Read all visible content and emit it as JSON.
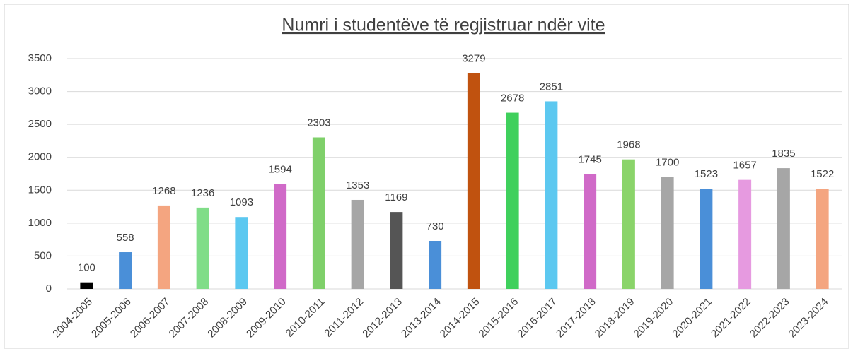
{
  "chart_data": {
    "type": "bar",
    "title": "Numri i studentëve të regjistruar ndër vite",
    "categories": [
      "2004-2005",
      "2005-2006",
      "2006-2007",
      "2007-2008",
      "2008-2009",
      "2009-2010",
      "2010-2011",
      "2011-2012",
      "2012-2013",
      "2013-2014",
      "2014-2015",
      "2015-2016",
      "2016-2017",
      "2017-2018",
      "2018-2019",
      "2019-2020",
      "2020-2021",
      "2021-2022",
      "2022-2023",
      "2023-2024"
    ],
    "values": [
      100,
      558,
      1268,
      1236,
      1093,
      1594,
      2303,
      1353,
      1169,
      730,
      3279,
      2678,
      2851,
      1745,
      1968,
      1700,
      1523,
      1657,
      1835,
      1522
    ],
    "colors": [
      "#000000",
      "#4a8fd8",
      "#f4a580",
      "#80dd88",
      "#5cc8f0",
      "#d06ac8",
      "#7fd06a",
      "#a6a6a6",
      "#555555",
      "#4a8fd8",
      "#c0520f",
      "#3fd05c",
      "#5cc8f0",
      "#d06ac8",
      "#8ad46a",
      "#a6a6a6",
      "#4a8fd8",
      "#e69ae0",
      "#a6a6a6",
      "#f4a580"
    ],
    "ylim": [
      0,
      3500
    ],
    "yticks": [
      0,
      500,
      1000,
      1500,
      2000,
      2500,
      3000,
      3500
    ],
    "grid": true
  }
}
